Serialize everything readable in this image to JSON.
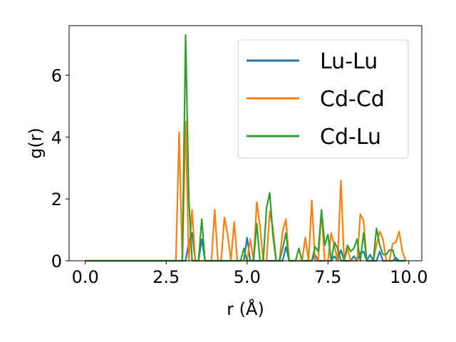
{
  "chart_data": {
    "type": "line",
    "xlabel": "r (Å)",
    "ylabel": "g(r)",
    "xlim": [
      -0.5,
      10.4
    ],
    "ylim": [
      0,
      7.6
    ],
    "xticks": [
      0.0,
      2.5,
      5.0,
      7.5,
      10.0
    ],
    "xtick_labels": [
      "0.0",
      "2.5",
      "5.0",
      "7.5",
      "10.0"
    ],
    "yticks": [
      0,
      2,
      4,
      6
    ],
    "ytick_labels": [
      "0",
      "2",
      "4",
      "6"
    ],
    "grid": false,
    "legend_position": "top-right",
    "series": [
      {
        "name": "Lu-Lu",
        "color": "#1f77b4",
        "x": [
          0.0,
          2.9,
          3.0,
          3.1,
          3.2,
          3.3,
          3.4,
          3.5,
          3.6,
          3.7,
          3.8,
          4.7,
          4.8,
          4.9,
          5.0,
          5.1,
          5.2,
          5.3,
          6.0,
          6.1,
          6.2,
          6.3,
          7.0,
          7.1,
          7.2,
          7.3,
          7.4,
          7.5,
          7.6,
          7.7,
          7.8,
          7.9,
          8.0,
          8.1,
          8.2,
          8.3,
          8.4,
          8.5,
          8.6,
          8.7,
          8.8,
          8.9,
          9.0,
          9.1,
          9.2,
          9.3,
          9.4,
          9.5,
          9.6,
          9.7,
          9.8,
          9.9
        ],
        "y": [
          0,
          0,
          0,
          0,
          0.6,
          0.9,
          0,
          0,
          0.7,
          0,
          0,
          0,
          0,
          0,
          0.75,
          0,
          0,
          0,
          0,
          0,
          0.45,
          0,
          0,
          0.2,
          0,
          0,
          0,
          0,
          0,
          0.15,
          0,
          0.35,
          0,
          0,
          0,
          0.15,
          0,
          0.25,
          0.3,
          0,
          0.2,
          0,
          0,
          0.3,
          0,
          0,
          0,
          0,
          0.1,
          0,
          0,
          0
        ]
      },
      {
        "name": "Cd-Cd",
        "color": "#ff7f0e",
        "x": [
          0.0,
          2.8,
          2.9,
          3.0,
          3.1,
          3.2,
          3.3,
          3.4,
          3.5,
          3.6,
          3.7,
          3.8,
          3.9,
          4.0,
          4.1,
          4.2,
          4.3,
          4.4,
          4.5,
          4.6,
          4.7,
          4.8,
          4.9,
          5.0,
          5.1,
          5.2,
          5.3,
          5.4,
          5.5,
          5.6,
          5.7,
          5.8,
          5.9,
          6.0,
          6.1,
          6.2,
          6.3,
          6.4,
          6.5,
          6.6,
          6.7,
          6.8,
          6.9,
          7.0,
          7.1,
          7.2,
          7.3,
          7.4,
          7.5,
          7.6,
          7.7,
          7.8,
          7.9,
          8.0,
          8.1,
          8.2,
          8.3,
          8.4,
          8.5,
          8.6,
          8.7,
          8.8,
          8.9,
          9.0,
          9.1,
          9.2,
          9.3,
          9.4,
          9.5,
          9.6,
          9.7,
          9.8,
          9.9
        ],
        "y": [
          0,
          0,
          4.15,
          0,
          4.5,
          0,
          1.65,
          0,
          0,
          0,
          0,
          0,
          0,
          1.65,
          0,
          0,
          1.4,
          0.85,
          0,
          1.25,
          0,
          0,
          0,
          0,
          0.7,
          0,
          1.9,
          1.1,
          0,
          0,
          1.6,
          1.05,
          0,
          0,
          0.95,
          1.35,
          0,
          0,
          0,
          0,
          0,
          0.75,
          0,
          1.95,
          0,
          0,
          1.6,
          0,
          0,
          0.9,
          0.5,
          0,
          2.6,
          0,
          0.4,
          0,
          0,
          0,
          1.5,
          1.3,
          0,
          0,
          0,
          0.5,
          0.95,
          0.7,
          0,
          0,
          0.55,
          0.6,
          0.95,
          0.3,
          0
        ]
      },
      {
        "name": "Cd-Lu",
        "color": "#2ca02c",
        "x": [
          0.0,
          2.9,
          3.0,
          3.1,
          3.2,
          3.3,
          3.4,
          3.5,
          3.6,
          3.7,
          3.8,
          4.5,
          4.6,
          4.7,
          4.8,
          4.9,
          5.0,
          5.1,
          5.2,
          5.3,
          5.4,
          5.5,
          5.6,
          5.7,
          5.8,
          5.9,
          6.0,
          6.1,
          6.2,
          6.3,
          6.4,
          6.5,
          6.6,
          6.7,
          6.8,
          6.9,
          7.0,
          7.1,
          7.2,
          7.3,
          7.4,
          7.5,
          7.6,
          7.7,
          7.8,
          7.9,
          8.0,
          8.1,
          8.2,
          8.3,
          8.4,
          8.5,
          8.6,
          8.7,
          8.8,
          8.9,
          9.0,
          9.1,
          9.2,
          9.3,
          9.4,
          9.5,
          9.6,
          9.7,
          9.8,
          9.9
        ],
        "y": [
          0,
          0,
          0,
          7.3,
          2.0,
          0,
          0,
          0,
          1.35,
          0,
          0,
          0,
          0,
          0,
          0,
          0.4,
          0,
          0,
          0,
          1.2,
          0,
          0,
          1.7,
          2.2,
          0.8,
          0,
          0,
          0.4,
          0.9,
          0,
          0,
          0,
          0.4,
          0,
          0,
          0,
          0,
          0.45,
          0.3,
          1.65,
          0.5,
          0.85,
          0,
          0.6,
          0.4,
          0,
          0,
          0.5,
          0.3,
          0.4,
          0.7,
          0,
          0.9,
          0,
          0,
          0,
          1.05,
          0.5,
          0.2,
          0.2,
          0.35,
          0.35,
          0,
          0,
          0,
          0
        ]
      }
    ]
  }
}
